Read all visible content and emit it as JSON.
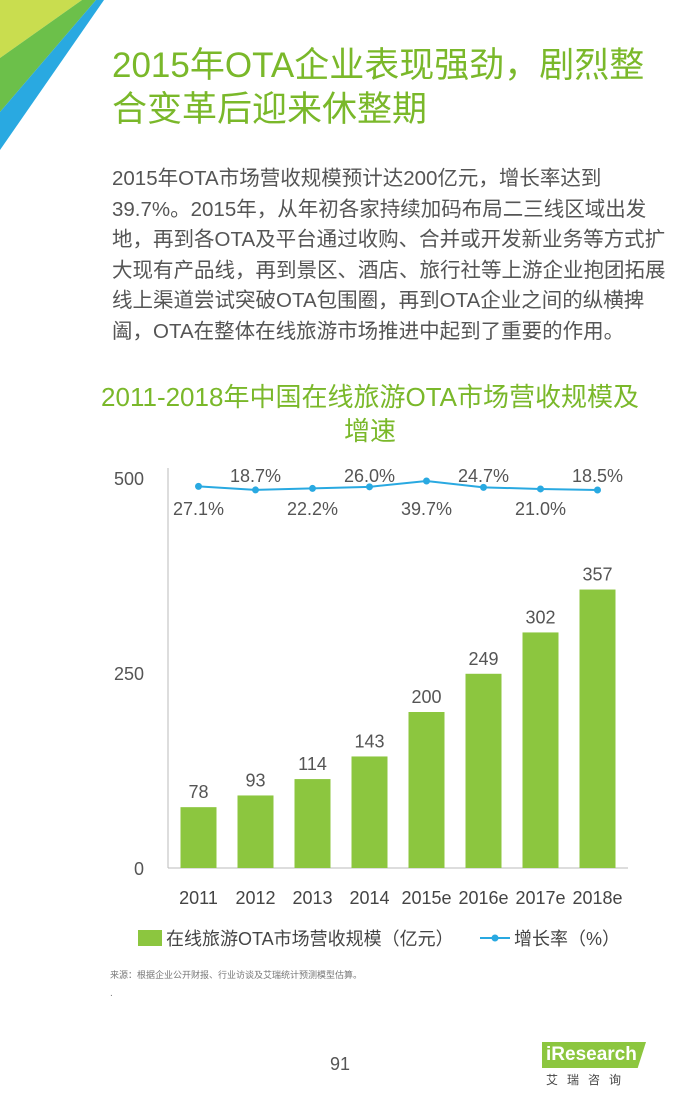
{
  "title": "2015年OTA企业表现强劲，剧烈整合变革后迎来休整期",
  "body": "2015年OTA市场营收规模预计达200亿元，增长率达到39.7%。2015年，从年初各家持续加码布局二三线区域出发地，再到各OTA及平台通过收购、合并或开发新业务等方式扩大现有产品线，再到景区、酒店、旅行社等上游企业抱团拓展线上渠道尝试突破OTA包围圈，再到OTA企业之间的纵横捭阖，OTA在整体在线旅游市场推进中起到了重要的作用。",
  "chart_title": "2011-2018年中国在线旅游OTA市场营收规模及增速",
  "source": "来源：根据企业公开财报、行业访谈及艾瑞统计预测模型估算。",
  "footnote_mark": ".",
  "page_number": "91",
  "logo": {
    "text": "iResearch",
    "sub": "艾瑞咨询"
  },
  "colors": {
    "accent_green": "#7ab82a",
    "bar_green": "#8cc63f",
    "line_blue": "#29a9e1"
  },
  "chart_data": {
    "type": "bar",
    "categories": [
      "2011",
      "2012",
      "2013",
      "2014",
      "2015e",
      "2016e",
      "2017e",
      "2018e"
    ],
    "series": [
      {
        "name": "在线旅游OTA市场营收规模（亿元）",
        "type": "bar",
        "values": [
          78,
          93,
          114,
          143,
          200,
          249,
          302,
          357
        ]
      },
      {
        "name": "增长率（%）",
        "type": "line",
        "values": [
          27.1,
          18.7,
          22.2,
          26.0,
          39.7,
          24.7,
          21.0,
          18.5
        ],
        "labels": [
          "27.1%",
          "18.7%",
          "22.2%",
          "26.0%",
          "39.7%",
          "24.7%",
          "21.0%",
          "18.5%"
        ]
      }
    ],
    "yticks": [
      "0",
      "250",
      "500"
    ],
    "ylim": [
      0,
      500
    ],
    "legend_position": "bottom",
    "grid": false
  }
}
